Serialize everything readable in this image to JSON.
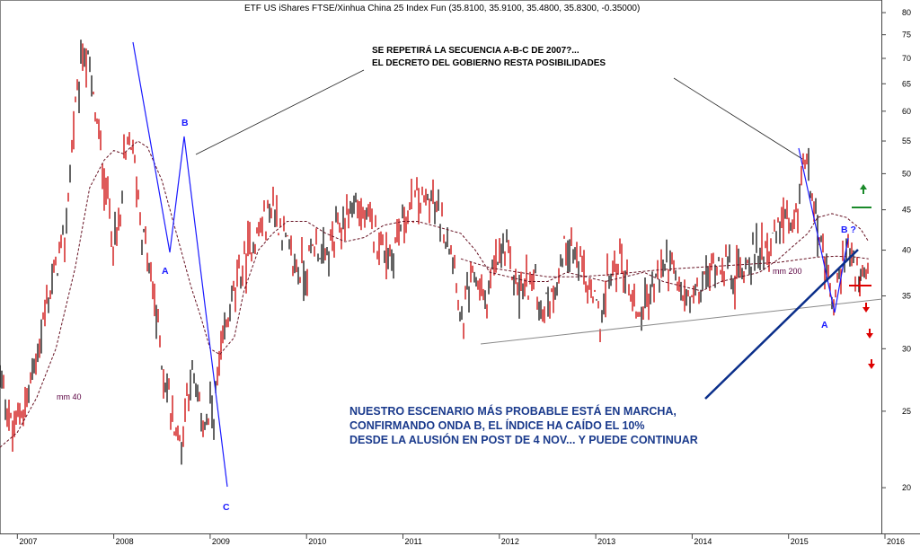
{
  "chart_data": {
    "type": "line",
    "title": "ETF US iShares FTSE/Xinhua China 25 Index Fun (35.8100, 35.9100, 35.4800, 35.8300, -0.35000)",
    "y_scale": "log",
    "ylim": [
      17.5,
      83
    ],
    "yticks": [
      20,
      25,
      30,
      35,
      40,
      45,
      50,
      55,
      60,
      65,
      70,
      75,
      80
    ],
    "xticks": [
      "2007",
      "2008",
      "2009",
      "2010",
      "2011",
      "2012",
      "2013",
      "2014",
      "2015",
      "2016"
    ],
    "series": [
      {
        "name": "",
        "color": "#cc0000",
        "x": [
          2006.82,
          2006.95,
          2007.1,
          2007.2,
          2007.35,
          2007.5,
          2007.6,
          2007.68,
          2007.75,
          2007.8,
          2007.85,
          2007.9,
          2008.0,
          2008.08,
          2008.1,
          2008.18,
          2008.25,
          2008.3,
          2008.4,
          2008.5,
          2008.6,
          2008.7,
          2008.75,
          2008.8,
          2008.88,
          2008.95,
          2009.05,
          2009.12,
          2009.25,
          2009.4,
          2009.55,
          2009.65,
          2009.75,
          2009.85,
          2010.0,
          2010.08,
          2010.2,
          2010.35,
          2010.5,
          2010.65,
          2010.8,
          2010.88,
          2011.0,
          2011.15,
          2011.3,
          2011.45,
          2011.55,
          2011.6,
          2011.65,
          2011.75,
          2011.85,
          2011.95,
          2012.05,
          2012.2,
          2012.35,
          2012.45,
          2012.55,
          2012.7,
          2012.85,
          2012.95,
          2013.05,
          2013.15,
          2013.25,
          2013.35,
          2013.45,
          2013.6,
          2013.75,
          2013.85,
          2014.0,
          2014.1,
          2014.2,
          2014.3,
          2014.45,
          2014.55,
          2014.7,
          2014.85,
          2014.95,
          2015.05,
          2015.1,
          2015.15,
          2015.2,
          2015.25,
          2015.3,
          2015.35,
          2015.4,
          2015.45,
          2015.5,
          2015.55,
          2015.6,
          2015.63,
          2015.66,
          2015.7,
          2015.75,
          2015.8,
          2015.83
        ],
        "y": [
          27.5,
          23.5,
          26,
          29.5,
          36,
          42,
          60,
          72,
          68,
          60,
          55,
          50,
          40.5,
          44,
          51,
          55,
          47,
          42,
          36,
          29,
          25,
          22.5,
          26,
          28,
          25,
          24,
          25.5,
          29.5,
          35.5,
          40,
          43,
          46,
          42,
          38.5,
          37.5,
          41,
          39,
          43,
          46,
          43,
          40.5,
          39.5,
          43.5,
          46,
          46,
          42,
          38,
          31,
          34,
          37,
          34,
          38,
          40,
          35.5,
          37,
          33.5,
          35,
          41,
          38,
          35,
          33,
          37,
          39,
          36,
          33,
          36,
          39,
          35.5,
          34.5,
          36,
          38,
          39,
          37,
          38.5,
          40,
          41,
          44,
          41,
          45,
          52,
          50.5,
          48,
          43,
          39,
          37,
          34,
          35,
          38,
          41,
          40,
          38,
          37,
          36.5,
          36.2,
          35.83
        ]
      },
      {
        "name": "mm 40",
        "color": "#661122",
        "x": [
          2006.82,
          2007.0,
          2007.2,
          2007.4,
          2007.6,
          2007.75,
          2007.9,
          2008.0,
          2008.1,
          2008.25,
          2008.35,
          2008.5,
          2008.65,
          2008.8,
          2008.9,
          2009.0,
          2009.1,
          2009.25,
          2009.35,
          2009.5,
          2009.65,
          2009.8,
          2010.0,
          2010.2,
          2010.4,
          2010.6,
          2010.8,
          2011.0,
          2011.15,
          2011.3,
          2011.45,
          2011.6,
          2011.75,
          2011.9,
          2012.1,
          2012.3,
          2012.5,
          2012.7,
          2012.9,
          2013.1,
          2013.3,
          2013.5,
          2013.7,
          2013.9,
          2014.1,
          2014.3,
          2014.5,
          2014.7,
          2014.9,
          2015.05,
          2015.2,
          2015.3,
          2015.45,
          2015.6,
          2015.75,
          2015.83
        ],
        "y": [
          22.5,
          23.5,
          26,
          30,
          38,
          48,
          52,
          53.5,
          53,
          55,
          54,
          49,
          42,
          36,
          33,
          30,
          29.5,
          31,
          35.5,
          40,
          42,
          43.5,
          43.5,
          42,
          41,
          41.5,
          43,
          43.5,
          43.5,
          43,
          42.5,
          42,
          40,
          37.5,
          37,
          36.5,
          36.5,
          37.5,
          37,
          36.5,
          37,
          37.5,
          36.5,
          36,
          35.5,
          36.5,
          37,
          37.5,
          39,
          40.5,
          42,
          44,
          44.5,
          44,
          42.5,
          41
        ]
      },
      {
        "name": "mm 200",
        "color": "#661122",
        "x": [
          2011.6,
          2011.9,
          2012.2,
          2012.5,
          2012.8,
          2013.1,
          2013.4,
          2013.7,
          2014.0,
          2014.3,
          2014.6,
          2014.9,
          2015.1,
          2015.3,
          2015.5,
          2015.7,
          2015.83
        ],
        "y": [
          39,
          38,
          37.5,
          37,
          37,
          37.2,
          37.5,
          37.8,
          38,
          38.2,
          38.4,
          38.6,
          38.9,
          39.2,
          39.3,
          39.2,
          39
        ]
      }
    ]
  },
  "annotations": {
    "top_line1": "SE REPETIRÁ LA SECUENCIA A-B-C DE 2007?...",
    "top_line2": "EL DECRETO DEL GOBIERNO RESTA POSIBILIDADES",
    "bottom_line1": "NUESTRO ESCENARIO MÁS PROBABLE ESTÁ EN MARCHA,",
    "bottom_line2": "CONFIRMANDO ONDA B, EL ÍNDICE HA CAÍDO EL 10%",
    "bottom_line3": "DESDE LA ALUSIÓN EN POST DE 4 NOV... Y PUEDE CONTINUAR",
    "label_a_2008": "A",
    "label_b_2008": "B",
    "label_c_2008": "C",
    "label_a_2015": "A",
    "label_b_2015": "B ?",
    "label_mm40": "mm 40",
    "label_mm200": "mm 200"
  },
  "colors": {
    "price": "#cc0000",
    "price_dark": "#111111",
    "moving_average": "#661122",
    "wave_lines": "#1a1aff",
    "trendline": "#0a2e8a",
    "support_line": "#888888",
    "up_arrow": "#1a8a2a",
    "down_arrow": "#dd0000",
    "annotation_text": "#1a3a8c"
  }
}
